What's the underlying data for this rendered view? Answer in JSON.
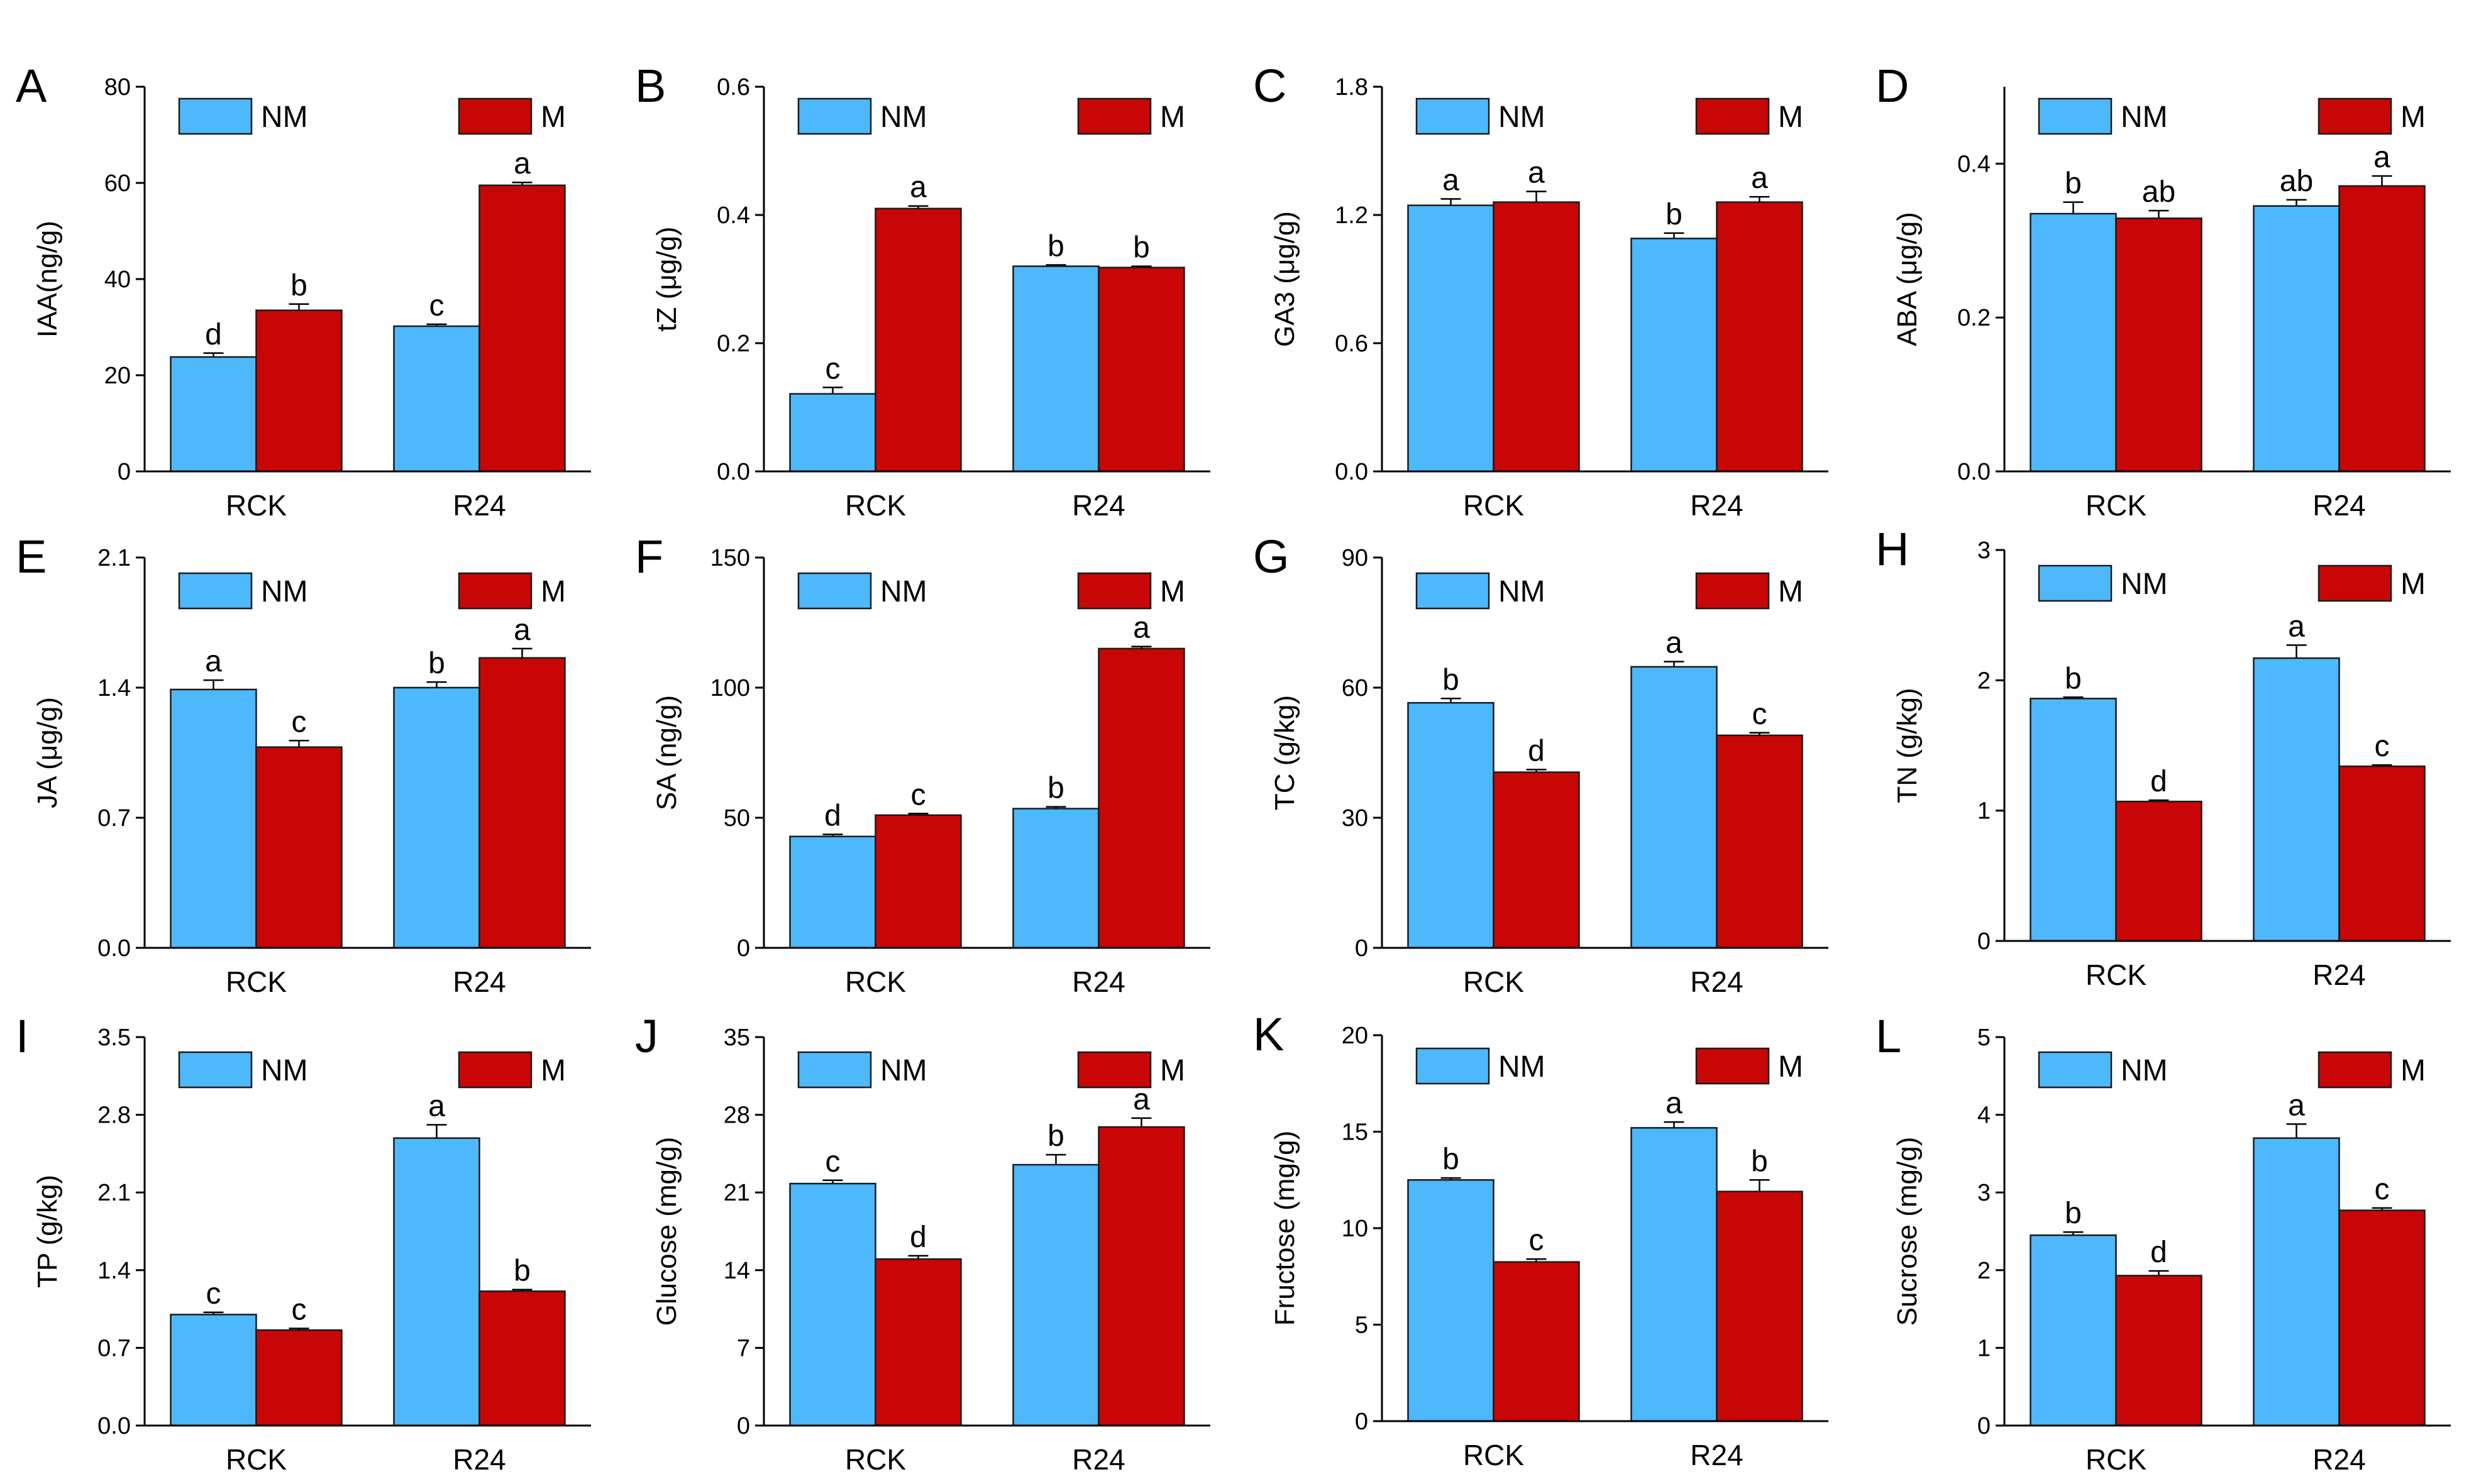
{
  "legend": {
    "nm": "NM",
    "m": "M"
  },
  "colors": {
    "nm": "#4DB8FC",
    "m": "#C80606",
    "axis": "#000000"
  },
  "chart_data": [
    {
      "panel": "A",
      "type": "bar",
      "ylabel": "IAA(ng/g)",
      "ylim": [
        0,
        80
      ],
      "yticks": [
        "0",
        "20",
        "40",
        "60",
        "80"
      ],
      "categories": [
        "RCK",
        "R24"
      ],
      "series": [
        {
          "name": "NM",
          "values": [
            23.8,
            30.2
          ],
          "errors": [
            0.8,
            0.4
          ],
          "letters": [
            "d",
            "c"
          ]
        },
        {
          "name": "M",
          "values": [
            33.5,
            59.5
          ],
          "errors": [
            1.3,
            0.6
          ],
          "letters": [
            "b",
            "a"
          ]
        }
      ]
    },
    {
      "panel": "B",
      "type": "bar",
      "ylabel": "tZ (μg/g)",
      "ylim": [
        0,
        0.6
      ],
      "yticks": [
        "0.0",
        "0.2",
        "0.4",
        "0.6"
      ],
      "categories": [
        "RCK",
        "R24"
      ],
      "series": [
        {
          "name": "NM",
          "values": [
            0.121,
            0.32
          ],
          "errors": [
            0.01,
            0.002
          ],
          "letters": [
            "c",
            "b"
          ]
        },
        {
          "name": "M",
          "values": [
            0.41,
            0.318
          ],
          "errors": [
            0.004,
            0.002
          ],
          "letters": [
            "a",
            "b"
          ]
        }
      ]
    },
    {
      "panel": "C",
      "type": "bar",
      "ylabel": "GA3 (μg/g)",
      "ylim": [
        0,
        1.8
      ],
      "yticks": [
        "0.0",
        "0.6",
        "1.2",
        "1.8"
      ],
      "categories": [
        "RCK",
        "R24"
      ],
      "series": [
        {
          "name": "NM",
          "values": [
            1.245,
            1.09
          ],
          "errors": [
            0.03,
            0.025
          ],
          "letters": [
            "a",
            "b"
          ]
        },
        {
          "name": "M",
          "values": [
            1.26,
            1.26
          ],
          "errors": [
            0.05,
            0.025
          ],
          "letters": [
            "a",
            "a"
          ]
        }
      ]
    },
    {
      "panel": "D",
      "type": "bar",
      "ylabel": "ABA (μg/g)",
      "ylim": [
        0,
        0.5
      ],
      "yticks": [
        "0.0",
        "0.2",
        "0.4"
      ],
      "categories": [
        "RCK",
        "R24"
      ],
      "series": [
        {
          "name": "NM",
          "values": [
            0.335,
            0.345
          ],
          "errors": [
            0.015,
            0.008
          ],
          "letters": [
            "b",
            "ab"
          ]
        },
        {
          "name": "M",
          "values": [
            0.329,
            0.371
          ],
          "errors": [
            0.01,
            0.013
          ],
          "letters": [
            "ab",
            "a"
          ]
        }
      ]
    },
    {
      "panel": "E",
      "type": "bar",
      "ylabel": "JA (μg/g)",
      "ylim": [
        0,
        2.1
      ],
      "yticks": [
        "0.0",
        "0.7",
        "1.4",
        "2.1"
      ],
      "categories": [
        "RCK",
        "R24"
      ],
      "series": [
        {
          "name": "NM",
          "values": [
            1.39,
            1.4
          ],
          "errors": [
            0.05,
            0.03
          ],
          "letters": [
            "a",
            "b"
          ]
        },
        {
          "name": "M",
          "values": [
            1.08,
            1.56
          ],
          "errors": [
            0.035,
            0.05
          ],
          "letters": [
            "c",
            "a"
          ]
        }
      ]
    },
    {
      "panel": "F",
      "type": "bar",
      "ylabel": "SA (ng/g)",
      "ylim": [
        0,
        150
      ],
      "yticks": [
        "0",
        "50",
        "100",
        "150"
      ],
      "categories": [
        "RCK",
        "R24"
      ],
      "series": [
        {
          "name": "NM",
          "values": [
            42.8,
            53.5
          ],
          "errors": [
            0.8,
            0.7
          ],
          "letters": [
            "d",
            "b"
          ]
        },
        {
          "name": "M",
          "values": [
            51.0,
            115.0
          ],
          "errors": [
            0.6,
            0.8
          ],
          "letters": [
            "c",
            "a"
          ]
        }
      ]
    },
    {
      "panel": "G",
      "type": "bar",
      "ylabel": "TC (g/kg)",
      "ylim": [
        0,
        90
      ],
      "yticks": [
        "0",
        "30",
        "60",
        "90"
      ],
      "categories": [
        "RCK",
        "R24"
      ],
      "series": [
        {
          "name": "NM",
          "values": [
            56.5,
            64.8
          ],
          "errors": [
            1.0,
            1.2
          ],
          "letters": [
            "b",
            "a"
          ]
        },
        {
          "name": "M",
          "values": [
            40.5,
            49.0
          ],
          "errors": [
            0.6,
            0.6
          ],
          "letters": [
            "d",
            "c"
          ]
        }
      ]
    },
    {
      "panel": "H",
      "type": "bar",
      "ylabel": "TN (g/kg)",
      "ylim": [
        0,
        3
      ],
      "yticks": [
        "0",
        "1",
        "2",
        "3"
      ],
      "categories": [
        "RCK",
        "R24"
      ],
      "series": [
        {
          "name": "NM",
          "values": [
            1.86,
            2.17
          ],
          "errors": [
            0.01,
            0.1
          ],
          "letters": [
            "b",
            "a"
          ]
        },
        {
          "name": "M",
          "values": [
            1.07,
            1.34
          ],
          "errors": [
            0.01,
            0.01
          ],
          "letters": [
            "d",
            "c"
          ]
        }
      ]
    },
    {
      "panel": "I",
      "type": "bar",
      "ylabel": "TP (g/kg)",
      "ylim": [
        0,
        3.5
      ],
      "yticks": [
        "0.0",
        "0.7",
        "1.4",
        "2.1",
        "2.8",
        "3.5"
      ],
      "categories": [
        "RCK",
        "R24"
      ],
      "series": [
        {
          "name": "NM",
          "values": [
            1.0,
            2.59
          ],
          "errors": [
            0.02,
            0.12
          ],
          "letters": [
            "c",
            "a"
          ]
        },
        {
          "name": "M",
          "values": [
            0.86,
            1.21
          ],
          "errors": [
            0.015,
            0.015
          ],
          "letters": [
            "c",
            "b"
          ]
        }
      ]
    },
    {
      "panel": "J",
      "type": "bar",
      "ylabel": "Glucose (mg/g)",
      "ylim": [
        0,
        35
      ],
      "yticks": [
        "0",
        "7",
        "14",
        "21",
        "28",
        "35"
      ],
      "categories": [
        "RCK",
        "R24"
      ],
      "series": [
        {
          "name": "NM",
          "values": [
            21.8,
            23.5
          ],
          "errors": [
            0.3,
            0.9
          ],
          "letters": [
            "c",
            "b"
          ]
        },
        {
          "name": "M",
          "values": [
            15.0,
            26.9
          ],
          "errors": [
            0.3,
            0.8
          ],
          "letters": [
            "d",
            "a"
          ]
        }
      ]
    },
    {
      "panel": "K",
      "type": "bar",
      "ylabel": "Fructose (mg/g)",
      "ylim": [
        0,
        20
      ],
      "yticks": [
        "0",
        "5",
        "10",
        "15",
        "20"
      ],
      "categories": [
        "RCK",
        "R24"
      ],
      "series": [
        {
          "name": "NM",
          "values": [
            12.5,
            15.2
          ],
          "errors": [
            0.1,
            0.3
          ],
          "letters": [
            "b",
            "a"
          ]
        },
        {
          "name": "M",
          "values": [
            8.25,
            11.9
          ],
          "errors": [
            0.15,
            0.6
          ],
          "letters": [
            "c",
            "b"
          ]
        }
      ]
    },
    {
      "panel": "L",
      "type": "bar",
      "ylabel": "Sucrose (mg/g)",
      "ylim": [
        0,
        5
      ],
      "yticks": [
        "0",
        "1",
        "2",
        "3",
        "4",
        "5"
      ],
      "categories": [
        "RCK",
        "R24"
      ],
      "series": [
        {
          "name": "NM",
          "values": [
            2.45,
            3.7
          ],
          "errors": [
            0.04,
            0.18
          ],
          "letters": [
            "b",
            "a"
          ]
        },
        {
          "name": "M",
          "values": [
            1.93,
            2.77
          ],
          "errors": [
            0.06,
            0.03
          ],
          "letters": [
            "d",
            "c"
          ]
        }
      ]
    }
  ]
}
